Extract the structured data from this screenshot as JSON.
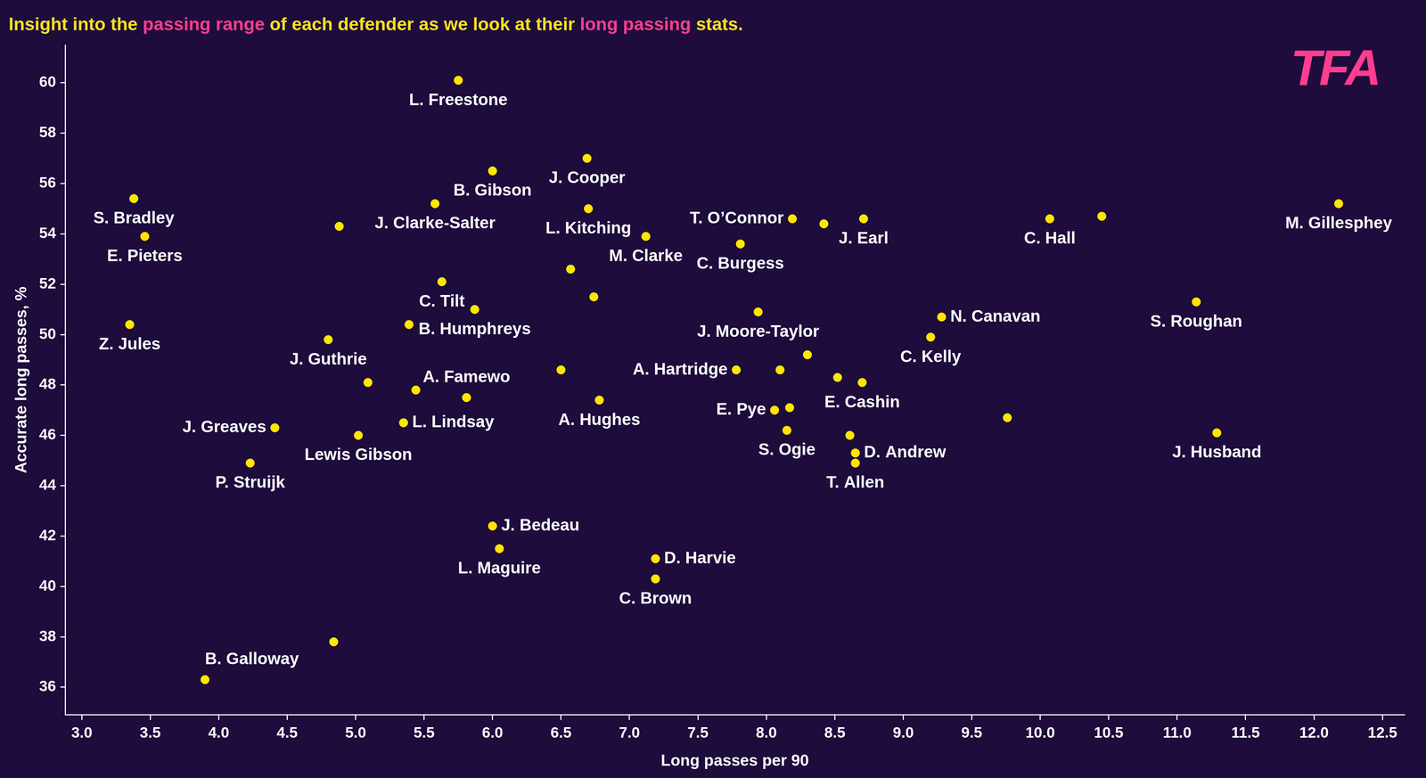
{
  "chart_data": {
    "type": "scatter",
    "title": [
      "Insight into the ",
      "passing range",
      " of each defender as we look at their ",
      "long passing",
      " stats."
    ],
    "annotations": [
      "TFA"
    ],
    "x_label": "Long passes per 90",
    "y_label": "Accurate long passes, %",
    "x": [
      5.75,
      6.69,
      6.0,
      3.38,
      5.58,
      4.88,
      6.7,
      3.46,
      7.12,
      8.19,
      8.42,
      8.71,
      7.81,
      10.07,
      10.45,
      12.18,
      6.57,
      5.63,
      6.74,
      5.87,
      7.94,
      11.14,
      9.28,
      3.35,
      5.39,
      9.2,
      4.8,
      8.3,
      5.09,
      5.44,
      5.81,
      6.5,
      7.78,
      8.1,
      8.52,
      8.7,
      6.78,
      8.06,
      8.17,
      8.15,
      9.76,
      8.61,
      8.65,
      8.65,
      11.29,
      4.41,
      5.35,
      5.02,
      4.23,
      6.0,
      6.05,
      7.19,
      7.19,
      4.84,
      3.9
    ],
    "values": [
      60.1,
      57.0,
      56.5,
      55.4,
      55.2,
      54.3,
      55.0,
      53.9,
      53.9,
      54.6,
      54.4,
      54.6,
      53.6,
      54.6,
      54.7,
      55.2,
      52.6,
      52.1,
      51.5,
      51.0,
      50.9,
      51.3,
      50.7,
      50.4,
      50.4,
      49.9,
      49.8,
      49.2,
      48.1,
      47.8,
      47.5,
      48.6,
      48.6,
      48.6,
      48.3,
      48.1,
      47.4,
      47.0,
      47.1,
      46.2,
      46.7,
      46.0,
      45.3,
      44.9,
      46.1,
      46.3,
      46.5,
      46.0,
      44.9,
      42.4,
      41.5,
      41.1,
      40.3,
      37.8,
      36.3
    ],
    "point_labels": [
      "L. Freestone",
      "J. Cooper",
      "B. Gibson",
      "S. Bradley",
      "J. Clarke-Salter",
      null,
      "L. Kitching",
      "E. Pieters",
      "M. Clarke",
      "T. O’Connor",
      null,
      "J. Earl",
      "C. Burgess",
      "C. Hall",
      null,
      "M. Gillesphey",
      null,
      "C. Tilt",
      null,
      "B. Humphreys",
      "J. Moore-Taylor",
      "S. Roughan",
      "N. Canavan",
      "Z. Jules",
      null,
      "C. Kelly",
      "J. Guthrie",
      null,
      null,
      null,
      "A. Famewo",
      null,
      "A. Hartridge",
      null,
      null,
      "E. Cashin",
      "A. Hughes",
      "E. Pye",
      null,
      "S. Ogie",
      null,
      null,
      "D. Andrew",
      "T. Allen",
      "J. Husband",
      "J. Greaves",
      "L. Lindsay",
      "Lewis Gibson",
      "P. Struijk",
      "J. Bedeau",
      "L. Maguire",
      "D. Harvie",
      "C. Brown",
      null,
      "B. Galloway"
    ],
    "color": "#ffe600",
    "marker": "circle",
    "xlim": [
      2.88,
      12.66
    ],
    "xticks": [
      {
        "value": 3,
        "label": "3.0"
      },
      3.5,
      {
        "value": 4,
        "label": "4.0"
      },
      4.5,
      {
        "value": 5,
        "label": "5.0"
      },
      5.5,
      {
        "value": 6,
        "label": "6.0"
      },
      6.5,
      {
        "value": 7,
        "label": "7.0"
      },
      7.5,
      {
        "value": 8,
        "label": "8.0"
      },
      8.5,
      {
        "value": 9,
        "label": "9.0"
      },
      9.5,
      {
        "value": 10,
        "label": "10.0"
      },
      10.5,
      {
        "value": 11,
        "label": "11.0"
      },
      11.5,
      {
        "value": 12,
        "label": "12.0"
      },
      12.5
    ],
    "ylim": [
      34.9,
      61.5
    ],
    "yticks": [
      36,
      38,
      40,
      42,
      44,
      46,
      48,
      50,
      52,
      54,
      56,
      58,
      60
    ],
    "grid": false
  }
}
